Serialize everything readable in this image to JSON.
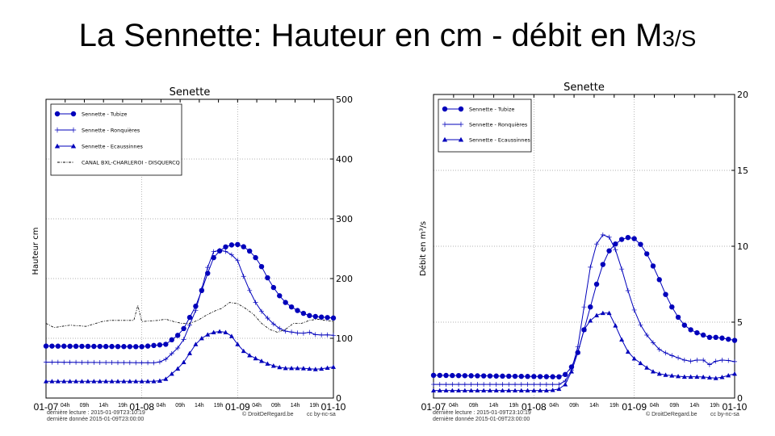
{
  "slide_title": {
    "main": "La Sennette: Hauteur en cm  -  débit en M",
    "suffix": "3/S"
  },
  "footer": {
    "last_read": "dernière lecture : 2015-01-09T23:10:19",
    "last_data": "dernière donnée  2015-01-09T23:00:00",
    "credit": "© DroitDeRegard.be",
    "license": "cc by-nc-sa"
  },
  "colors": {
    "series": "#0000bb",
    "canal": "#000000",
    "grid": "#999999"
  },
  "chart_data": [
    {
      "type": "line",
      "title": "Senette",
      "ylabel": "Hauteur cm",
      "ylim": [
        0,
        500
      ],
      "yticks": [
        0,
        100,
        200,
        300,
        400,
        500
      ],
      "x_unit": "hours since 01-07 00h",
      "xlim": [
        0,
        72
      ],
      "xtick_labels": [
        "01-07",
        "04h",
        "09h",
        "14h",
        "19h",
        "01-08",
        "04h",
        "09h",
        "14h",
        "19h",
        "01-09",
        "04h",
        "09h",
        "14h",
        "19h",
        "01-10"
      ],
      "grid": true,
      "legend": "top-left",
      "series": [
        {
          "name": "Sennette - Tubize",
          "marker": "circle",
          "points": [
            [
              0,
              87
            ],
            [
              24,
              86
            ],
            [
              30,
              90
            ],
            [
              34,
              110
            ],
            [
              38,
              160
            ],
            [
              40,
              200
            ],
            [
              42,
              235
            ],
            [
              44,
              250
            ],
            [
              46,
              256
            ],
            [
              48,
              257
            ],
            [
              50,
              252
            ],
            [
              52,
              240
            ],
            [
              54,
              220
            ],
            [
              56,
              195
            ],
            [
              58,
              175
            ],
            [
              60,
              160
            ],
            [
              62,
              150
            ],
            [
              64,
              143
            ],
            [
              66,
              138
            ],
            [
              68,
              136
            ],
            [
              70,
              135
            ],
            [
              72,
              134
            ]
          ]
        },
        {
          "name": "Sennette - Ronquières",
          "marker": "plus",
          "points": [
            [
              0,
              60
            ],
            [
              28,
              59
            ],
            [
              30,
              65
            ],
            [
              34,
              90
            ],
            [
              38,
              155
            ],
            [
              40,
              210
            ],
            [
              42,
              245
            ],
            [
              44,
              248
            ],
            [
              46,
              243
            ],
            [
              48,
              230
            ],
            [
              50,
              195
            ],
            [
              52,
              165
            ],
            [
              54,
              145
            ],
            [
              56,
              130
            ],
            [
              58,
              118
            ],
            [
              60,
              112
            ],
            [
              62,
              110
            ],
            [
              64,
              108
            ],
            [
              66,
              110
            ],
            [
              68,
              105
            ],
            [
              70,
              106
            ],
            [
              72,
              105
            ]
          ]
        },
        {
          "name": "Sennette - Ecaussinnes",
          "marker": "triangle",
          "points": [
            [
              0,
              28
            ],
            [
              28,
              28
            ],
            [
              30,
              32
            ],
            [
              34,
              55
            ],
            [
              38,
              95
            ],
            [
              40,
              105
            ],
            [
              42,
              110
            ],
            [
              44,
              112
            ],
            [
              46,
              108
            ],
            [
              48,
              90
            ],
            [
              50,
              75
            ],
            [
              52,
              68
            ],
            [
              54,
              62
            ],
            [
              56,
              56
            ],
            [
              58,
              52
            ],
            [
              60,
              50
            ],
            [
              64,
              50
            ],
            [
              68,
              48
            ],
            [
              72,
              52
            ]
          ]
        },
        {
          "name": "CANAL BXL-CHARLEROI - DISQUERCQ",
          "marker": "none",
          "dashed": true,
          "points": [
            [
              0,
              125
            ],
            [
              2,
              118
            ],
            [
              6,
              122
            ],
            [
              10,
              120
            ],
            [
              14,
              128
            ],
            [
              16,
              130
            ],
            [
              22,
              130
            ],
            [
              23,
              155
            ],
            [
              24,
              128
            ],
            [
              28,
              130
            ],
            [
              30,
              132
            ],
            [
              32,
              128
            ],
            [
              34,
              125
            ],
            [
              36,
              125
            ],
            [
              38,
              130
            ],
            [
              40,
              138
            ],
            [
              42,
              145
            ],
            [
              44,
              150
            ],
            [
              46,
              160
            ],
            [
              48,
              158
            ],
            [
              50,
              150
            ],
            [
              52,
              140
            ],
            [
              54,
              125
            ],
            [
              56,
              115
            ],
            [
              58,
              110
            ],
            [
              60,
              115
            ],
            [
              62,
              125
            ],
            [
              64,
              125
            ],
            [
              66,
              130
            ],
            [
              68,
              132
            ],
            [
              70,
              130
            ],
            [
              72,
              128
            ]
          ]
        }
      ]
    },
    {
      "type": "line",
      "title": "Senette",
      "ylabel": "Débit en m³/s",
      "ylim": [
        0,
        20
      ],
      "yticks": [
        0,
        5,
        10,
        15,
        20
      ],
      "x_unit": "hours since 01-07 00h",
      "xlim": [
        0,
        72
      ],
      "xtick_labels": [
        "01-07",
        "04h",
        "09h",
        "14h",
        "19h",
        "01-08",
        "04h",
        "09h",
        "14h",
        "19h",
        "01-09",
        "04h",
        "09h",
        "14h",
        "19h",
        "01-10"
      ],
      "grid": true,
      "legend": "top-left",
      "series": [
        {
          "name": "Sennette - Tubize",
          "marker": "circle",
          "points": [
            [
              0,
              1.5
            ],
            [
              30,
              1.4
            ],
            [
              32,
              1.6
            ],
            [
              34,
              2.5
            ],
            [
              36,
              4.5
            ],
            [
              38,
              6.5
            ],
            [
              40,
              8.5
            ],
            [
              42,
              9.7
            ],
            [
              44,
              10.3
            ],
            [
              46,
              10.6
            ],
            [
              48,
              10.5
            ],
            [
              50,
              10
            ],
            [
              52,
              9
            ],
            [
              54,
              7.8
            ],
            [
              56,
              6.5
            ],
            [
              58,
              5.5
            ],
            [
              60,
              4.8
            ],
            [
              62,
              4.4
            ],
            [
              64,
              4.2
            ],
            [
              66,
              4.0
            ],
            [
              68,
              4.0
            ],
            [
              70,
              3.9
            ],
            [
              72,
              3.8
            ]
          ]
        },
        {
          "name": "Sennette - Ronquières",
          "marker": "plus",
          "points": [
            [
              0,
              0.9
            ],
            [
              30,
              0.9
            ],
            [
              32,
              1.2
            ],
            [
              34,
              2.5
            ],
            [
              36,
              6
            ],
            [
              38,
              9.5
            ],
            [
              40,
              10.8
            ],
            [
              42,
              10.6
            ],
            [
              44,
              9.5
            ],
            [
              46,
              7.5
            ],
            [
              48,
              5.8
            ],
            [
              50,
              4.5
            ],
            [
              52,
              3.8
            ],
            [
              54,
              3.2
            ],
            [
              56,
              2.9
            ],
            [
              58,
              2.7
            ],
            [
              60,
              2.5
            ],
            [
              62,
              2.4
            ],
            [
              64,
              2.6
            ],
            [
              66,
              2.2
            ],
            [
              68,
              2.5
            ],
            [
              70,
              2.5
            ],
            [
              72,
              2.4
            ]
          ]
        },
        {
          "name": "Sennette - Ecaussinnes",
          "marker": "triangle",
          "points": [
            [
              0,
              0.5
            ],
            [
              28,
              0.5
            ],
            [
              30,
              0.6
            ],
            [
              32,
              1
            ],
            [
              34,
              2.5
            ],
            [
              36,
              4.5
            ],
            [
              38,
              5.3
            ],
            [
              40,
              5.6
            ],
            [
              42,
              5.6
            ],
            [
              44,
              4.5
            ],
            [
              46,
              3.2
            ],
            [
              48,
              2.6
            ],
            [
              50,
              2.2
            ],
            [
              52,
              1.8
            ],
            [
              54,
              1.6
            ],
            [
              56,
              1.5
            ],
            [
              60,
              1.4
            ],
            [
              64,
              1.4
            ],
            [
              68,
              1.3
            ],
            [
              72,
              1.6
            ]
          ]
        }
      ]
    }
  ]
}
